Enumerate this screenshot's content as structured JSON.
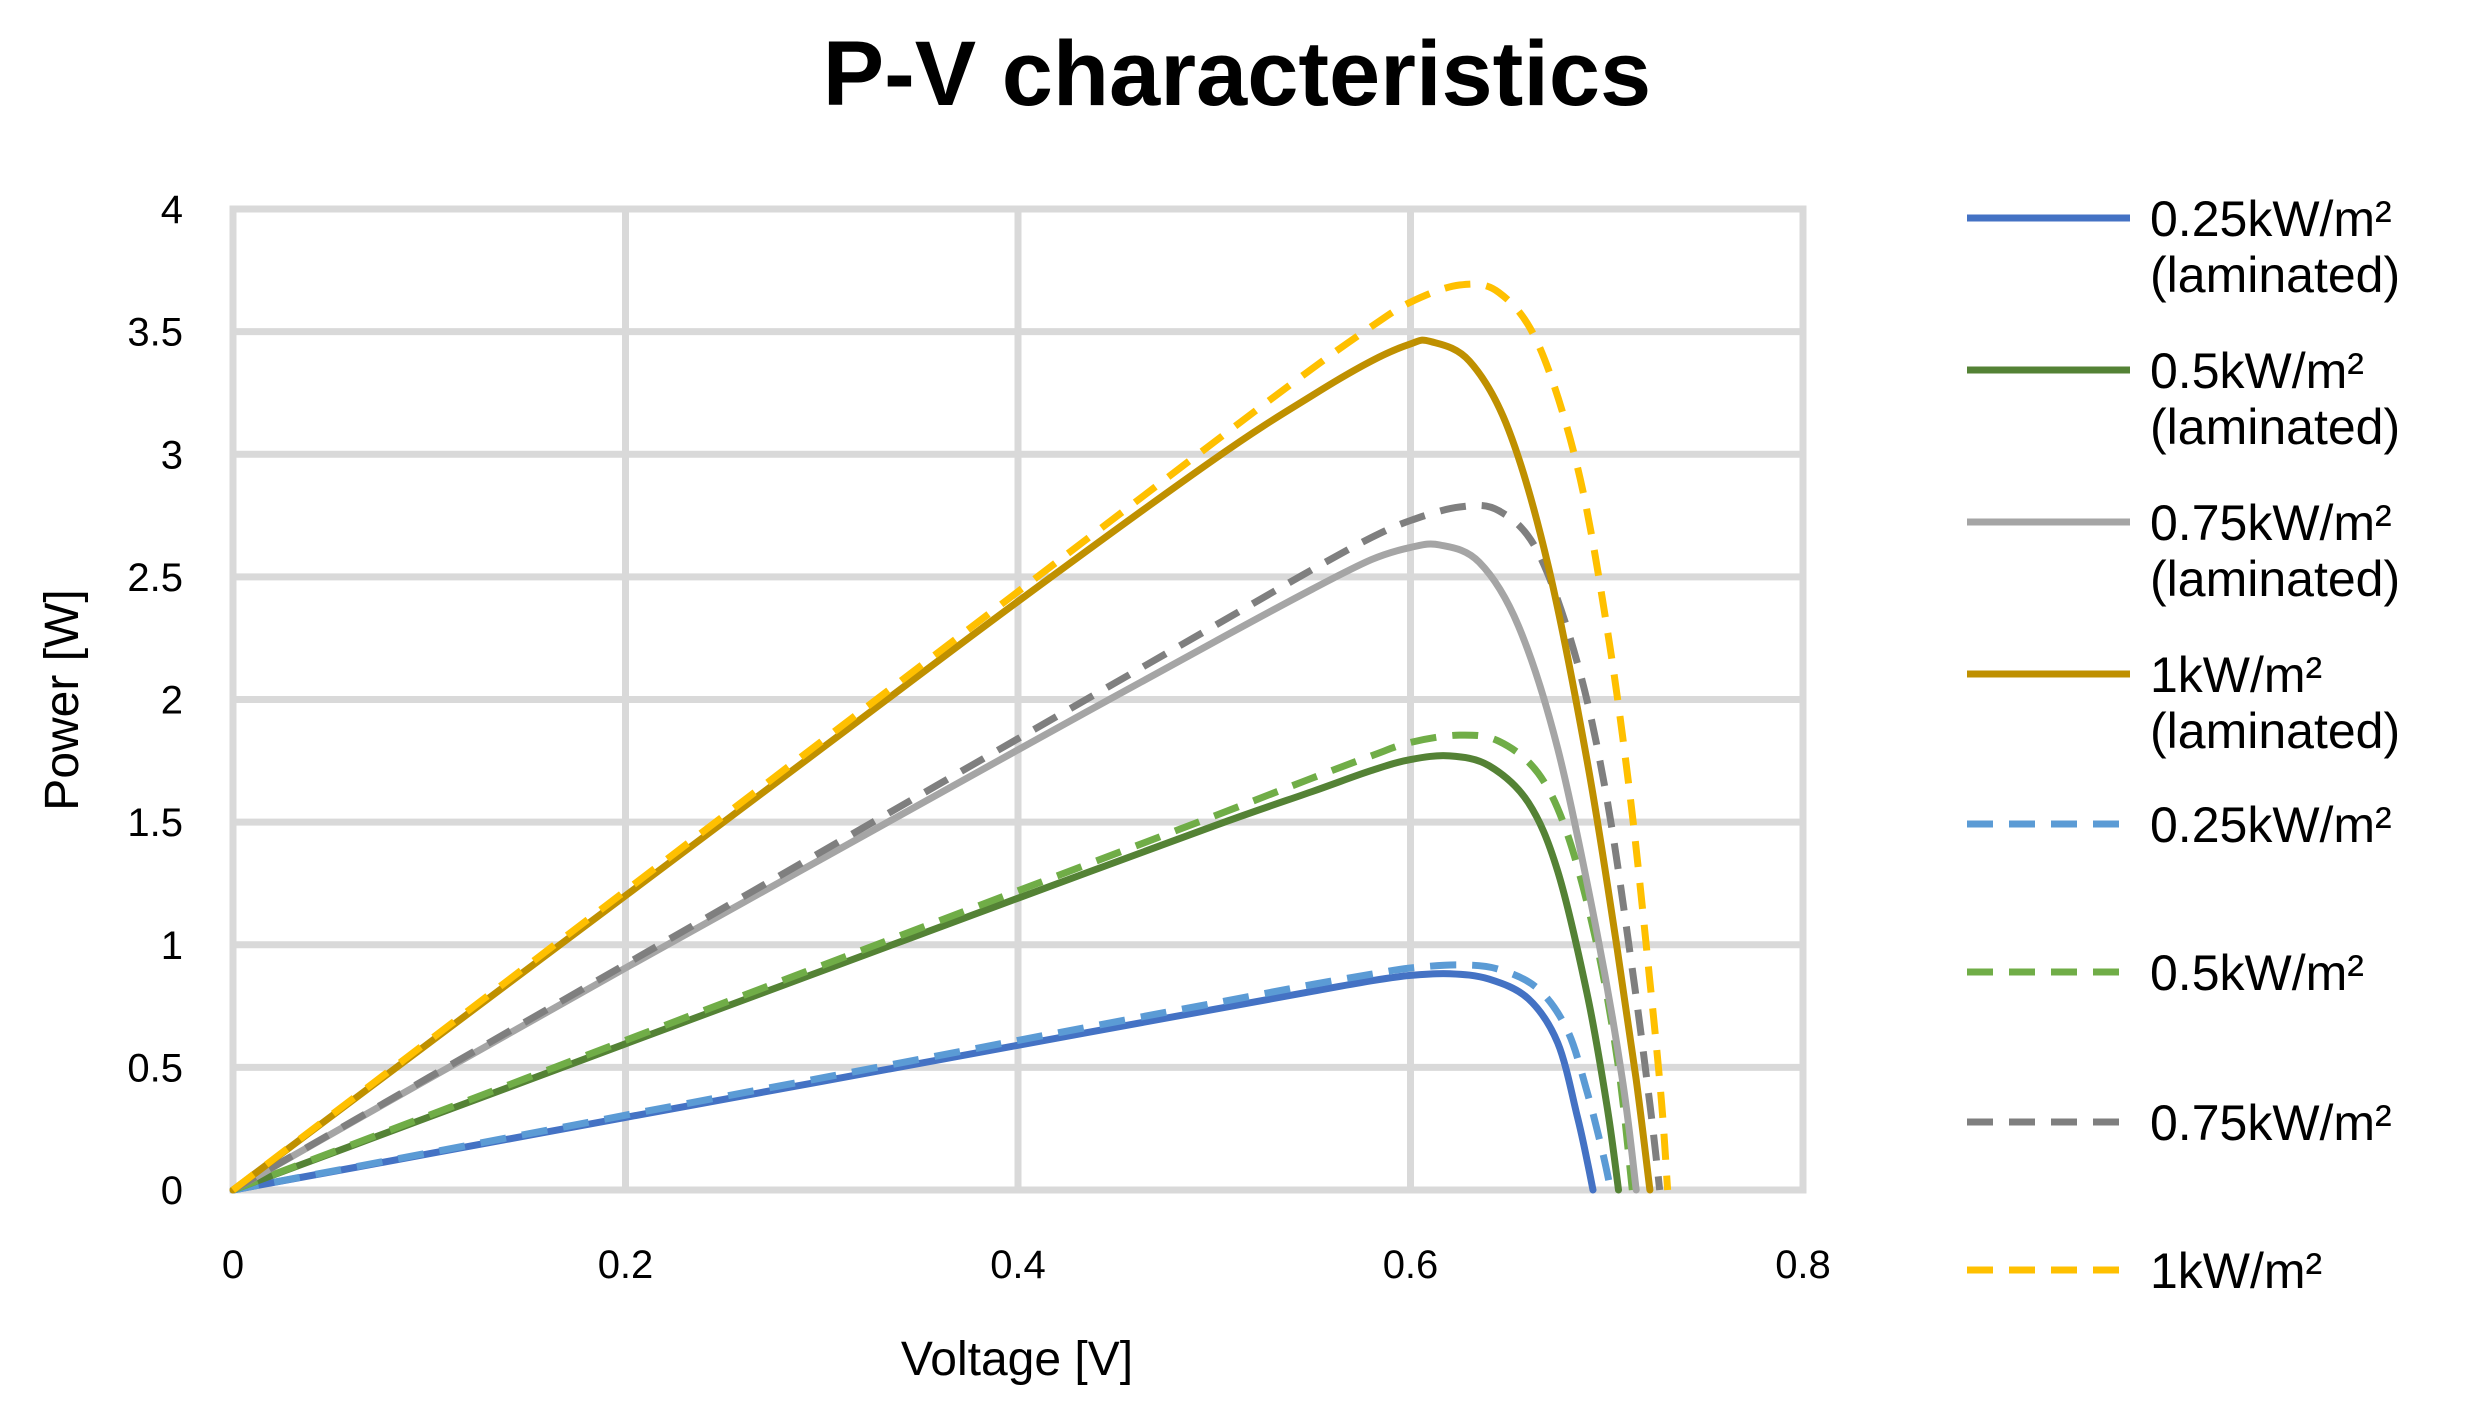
{
  "chart_data": {
    "type": "line",
    "title": "P-V characteristics",
    "xlabel": "Voltage [V]",
    "ylabel": "Power [W]",
    "xlim": [
      0,
      0.8
    ],
    "ylim": [
      0,
      4
    ],
    "x_ticks": [
      "0",
      "0.2",
      "0.4",
      "0.6",
      "0.8"
    ],
    "y_ticks": [
      "0",
      "0.5",
      "1",
      "1.5",
      "2",
      "2.5",
      "3",
      "3.5",
      "4"
    ],
    "grid": true,
    "legend_position": "right",
    "series": [
      {
        "name": "0.25kW/m² (laminated)",
        "legend_lines": [
          "0.25kW/m²",
          "(laminated)"
        ],
        "color": "#4472c4",
        "dash": "solid",
        "points": [
          [
            0,
            0
          ],
          [
            0.1,
            0.148
          ],
          [
            0.2,
            0.296
          ],
          [
            0.3,
            0.443
          ],
          [
            0.4,
            0.59
          ],
          [
            0.5,
            0.737
          ],
          [
            0.55,
            0.81
          ],
          [
            0.58,
            0.853
          ],
          [
            0.6,
            0.875
          ],
          [
            0.62,
            0.882
          ],
          [
            0.64,
            0.86
          ],
          [
            0.66,
            0.78
          ],
          [
            0.675,
            0.6
          ],
          [
            0.685,
            0.3
          ],
          [
            0.69,
            0.12
          ],
          [
            0.693,
            0
          ]
        ]
      },
      {
        "name": "0.5kW/m² (laminated)",
        "legend_lines": [
          "0.5kW/m²",
          "(laminated)"
        ],
        "color": "#548235",
        "dash": "solid",
        "points": [
          [
            0,
            0
          ],
          [
            0.1,
            0.298
          ],
          [
            0.2,
            0.596
          ],
          [
            0.3,
            0.893
          ],
          [
            0.4,
            1.19
          ],
          [
            0.5,
            1.485
          ],
          [
            0.55,
            1.625
          ],
          [
            0.58,
            1.71
          ],
          [
            0.6,
            1.755
          ],
          [
            0.62,
            1.77
          ],
          [
            0.64,
            1.73
          ],
          [
            0.66,
            1.58
          ],
          [
            0.675,
            1.3
          ],
          [
            0.69,
            0.8
          ],
          [
            0.7,
            0.35
          ],
          [
            0.706,
            0
          ]
        ]
      },
      {
        "name": "0.75kW/m² (laminated)",
        "legend_lines": [
          "0.75kW/m²",
          "(laminated)"
        ],
        "color": "#a5a5a5",
        "dash": "solid",
        "points": [
          [
            0,
            0
          ],
          [
            0.1,
            0.455
          ],
          [
            0.2,
            0.905
          ],
          [
            0.3,
            1.35
          ],
          [
            0.4,
            1.795
          ],
          [
            0.5,
            2.235
          ],
          [
            0.55,
            2.45
          ],
          [
            0.58,
            2.57
          ],
          [
            0.6,
            2.62
          ],
          [
            0.615,
            2.63
          ],
          [
            0.635,
            2.56
          ],
          [
            0.655,
            2.3
          ],
          [
            0.675,
            1.8
          ],
          [
            0.695,
            1.05
          ],
          [
            0.708,
            0.45
          ],
          [
            0.715,
            0
          ]
        ]
      },
      {
        "name": "1kW/m² (laminated)",
        "legend_lines": [
          "1kW/m²",
          "(laminated)"
        ],
        "color": "#bf9000",
        "dash": "solid",
        "points": [
          [
            0,
            0
          ],
          [
            0.1,
            0.6
          ],
          [
            0.2,
            1.2
          ],
          [
            0.3,
            1.8
          ],
          [
            0.4,
            2.4
          ],
          [
            0.5,
            2.98
          ],
          [
            0.55,
            3.24
          ],
          [
            0.58,
            3.38
          ],
          [
            0.6,
            3.45
          ],
          [
            0.61,
            3.46
          ],
          [
            0.63,
            3.38
          ],
          [
            0.65,
            3.1
          ],
          [
            0.67,
            2.55
          ],
          [
            0.69,
            1.75
          ],
          [
            0.705,
            1.0
          ],
          [
            0.715,
            0.45
          ],
          [
            0.722,
            0
          ]
        ]
      },
      {
        "name": "0.25kW/m²",
        "legend_lines": [
          "0.25kW/m²"
        ],
        "color": "#5b9bd5",
        "dash": "dashed",
        "points": [
          [
            0,
            0
          ],
          [
            0.1,
            0.152
          ],
          [
            0.2,
            0.305
          ],
          [
            0.3,
            0.457
          ],
          [
            0.4,
            0.61
          ],
          [
            0.5,
            0.762
          ],
          [
            0.55,
            0.838
          ],
          [
            0.58,
            0.88
          ],
          [
            0.6,
            0.905
          ],
          [
            0.625,
            0.918
          ],
          [
            0.645,
            0.9
          ],
          [
            0.665,
            0.82
          ],
          [
            0.68,
            0.65
          ],
          [
            0.69,
            0.4
          ],
          [
            0.698,
            0.15
          ],
          [
            0.702,
            0
          ]
        ]
      },
      {
        "name": "0.5kW/m²",
        "legend_lines": [
          "0.5kW/m²"
        ],
        "color": "#70ad47",
        "dash": "dashed",
        "points": [
          [
            0,
            0
          ],
          [
            0.1,
            0.305
          ],
          [
            0.2,
            0.61
          ],
          [
            0.3,
            0.915
          ],
          [
            0.4,
            1.22
          ],
          [
            0.5,
            1.525
          ],
          [
            0.55,
            1.68
          ],
          [
            0.58,
            1.77
          ],
          [
            0.6,
            1.825
          ],
          [
            0.625,
            1.855
          ],
          [
            0.645,
            1.83
          ],
          [
            0.665,
            1.7
          ],
          [
            0.68,
            1.45
          ],
          [
            0.695,
            1.0
          ],
          [
            0.706,
            0.5
          ],
          [
            0.713,
            0
          ]
        ]
      },
      {
        "name": "0.75kW/m²",
        "legend_lines": [
          "0.75kW/m²"
        ],
        "color": "#7f7f7f",
        "dash": "dashed",
        "points": [
          [
            0,
            0
          ],
          [
            0.1,
            0.46
          ],
          [
            0.2,
            0.92
          ],
          [
            0.3,
            1.38
          ],
          [
            0.4,
            1.84
          ],
          [
            0.5,
            2.3
          ],
          [
            0.55,
            2.53
          ],
          [
            0.58,
            2.66
          ],
          [
            0.6,
            2.73
          ],
          [
            0.625,
            2.785
          ],
          [
            0.645,
            2.77
          ],
          [
            0.665,
            2.6
          ],
          [
            0.685,
            2.15
          ],
          [
            0.7,
            1.6
          ],
          [
            0.713,
            0.9
          ],
          [
            0.722,
            0.35
          ],
          [
            0.727,
            0
          ]
        ]
      },
      {
        "name": "1kW/m²",
        "legend_lines": [
          "1kW/m²"
        ],
        "color": "#ffc000",
        "dash": "dashed",
        "points": [
          [
            0,
            0
          ],
          [
            0.1,
            0.61
          ],
          [
            0.2,
            1.22
          ],
          [
            0.3,
            1.83
          ],
          [
            0.4,
            2.44
          ],
          [
            0.5,
            3.05
          ],
          [
            0.55,
            3.35
          ],
          [
            0.58,
            3.52
          ],
          [
            0.6,
            3.62
          ],
          [
            0.625,
            3.69
          ],
          [
            0.645,
            3.66
          ],
          [
            0.665,
            3.45
          ],
          [
            0.685,
            2.95
          ],
          [
            0.7,
            2.3
          ],
          [
            0.712,
            1.6
          ],
          [
            0.722,
            0.85
          ],
          [
            0.728,
            0.35
          ],
          [
            0.731,
            0
          ]
        ]
      }
    ]
  }
}
